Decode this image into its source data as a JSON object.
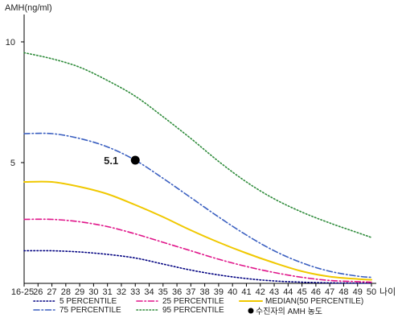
{
  "chart_data": {
    "type": "line",
    "y_axis_label": "AMH(ng/ml)",
    "x_axis_label": "나이",
    "x_tick_labels": [
      "16-25",
      "26",
      "27",
      "28",
      "29",
      "30",
      "31",
      "32",
      "33",
      "34",
      "35",
      "36",
      "37",
      "38",
      "39",
      "40",
      "41",
      "42",
      "43",
      "44",
      "45",
      "46",
      "47",
      "48",
      "49",
      "50"
    ],
    "y_ticks": [
      "5",
      "10"
    ],
    "ylim": [
      0,
      11
    ],
    "xlim": [
      25,
      50
    ],
    "grid": false,
    "legend_position": "bottom",
    "series": [
      {
        "name": "5 PERCENTILE",
        "color": "#000080",
        "dash": "dotted",
        "x": [
          25,
          27,
          29,
          31,
          33,
          35,
          37,
          39,
          41,
          43,
          45,
          47,
          49,
          50
        ],
        "y": [
          1.35,
          1.35,
          1.3,
          1.2,
          1.05,
          0.8,
          0.55,
          0.35,
          0.2,
          0.1,
          0.05,
          0.02,
          0.01,
          0.01
        ]
      },
      {
        "name": "25 PERCENTILE",
        "color": "#e0158a",
        "dash": "dashdot",
        "x": [
          25,
          27,
          29,
          31,
          33,
          35,
          37,
          39,
          41,
          43,
          45,
          47,
          49,
          50
        ],
        "y": [
          2.65,
          2.65,
          2.55,
          2.35,
          2.05,
          1.7,
          1.35,
          1.0,
          0.7,
          0.45,
          0.25,
          0.12,
          0.07,
          0.05
        ]
      },
      {
        "name": "MEDIAN(50 PERCENTILE)",
        "color": "#f0c800",
        "dash": "solid",
        "x": [
          25,
          27,
          29,
          31,
          33,
          35,
          37,
          39,
          41,
          43,
          45,
          47,
          49,
          50
        ],
        "y": [
          4.2,
          4.2,
          4.0,
          3.7,
          3.25,
          2.75,
          2.2,
          1.7,
          1.25,
          0.85,
          0.5,
          0.28,
          0.18,
          0.15
        ]
      },
      {
        "name": "75 PERCENTILE",
        "color": "#3a5fc0",
        "dash": "dashdot",
        "x": [
          25,
          27,
          29,
          31,
          33,
          35,
          37,
          39,
          41,
          43,
          45,
          47,
          49,
          50
        ],
        "y": [
          6.2,
          6.2,
          6.0,
          5.65,
          5.1,
          4.35,
          3.55,
          2.75,
          2.0,
          1.35,
          0.85,
          0.5,
          0.3,
          0.25
        ]
      },
      {
        "name": "95 PERCENTILE",
        "color": "#2e8b3a",
        "dash": "dotted",
        "x": [
          25,
          27,
          29,
          31,
          33,
          35,
          37,
          39,
          41,
          43,
          45,
          47,
          49,
          50
        ],
        "y": [
          9.55,
          9.3,
          8.95,
          8.4,
          7.75,
          6.9,
          6.0,
          5.05,
          4.2,
          3.5,
          2.95,
          2.5,
          2.1,
          1.9
        ]
      }
    ],
    "marker": {
      "name": "수진자의 AMH 농도",
      "x": 33,
      "y": 5.1,
      "label": "5.1",
      "color": "#000000"
    }
  }
}
